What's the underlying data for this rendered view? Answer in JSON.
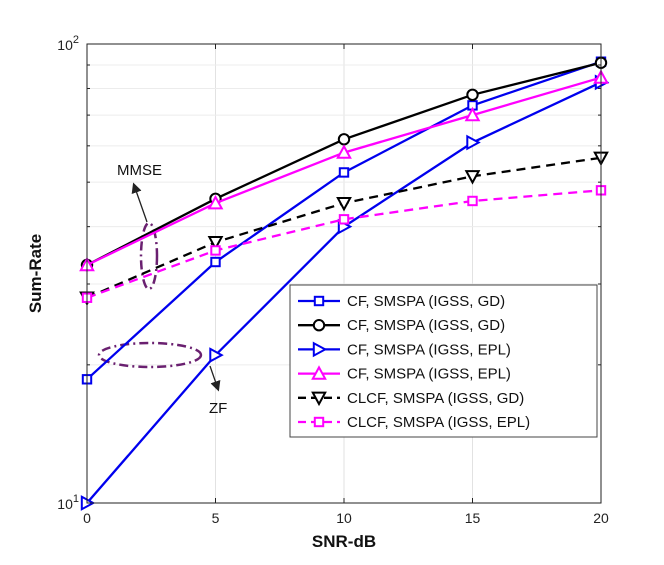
{
  "chart_data": {
    "type": "line",
    "yscale": "log",
    "xlabel": "SNR-dB",
    "ylabel": "Sum-Rate",
    "xlim": [
      0,
      20
    ],
    "ylim": [
      10,
      100
    ],
    "grid": true,
    "x": [
      0,
      5,
      10,
      15,
      20
    ],
    "xticks": [
      "0",
      "5",
      "10",
      "15",
      "20"
    ],
    "yticks": [
      {
        "value": 10,
        "base": "10",
        "exp": "1"
      },
      {
        "value": 100,
        "base": "10",
        "exp": "2"
      }
    ],
    "series": [
      {
        "name": "CF, SMSPA (IGSS, GD)",
        "color": "#0000ee",
        "dash": "solid",
        "marker": "square",
        "values": [
          18.6,
          33.5,
          52.5,
          73.5,
          91.5
        ]
      },
      {
        "name": "CF, SMSPA (IGSS, GD)",
        "color": "#000000",
        "dash": "solid",
        "marker": "circle",
        "values": [
          33.0,
          46.0,
          62.0,
          77.5,
          91.0
        ]
      },
      {
        "name": "CF, SMSPA (IGSS, EPL)",
        "color": "#0000ee",
        "dash": "solid",
        "marker": "triangle-right",
        "values": [
          10.0,
          21.0,
          40.0,
          61.0,
          82.5
        ]
      },
      {
        "name": "CF, SMSPA (IGSS, EPL)",
        "color": "#ff00ff",
        "dash": "solid",
        "marker": "triangle-up",
        "values": [
          33.0,
          45.0,
          58.0,
          70.0,
          84.5
        ]
      },
      {
        "name": "CLCF, SMSPA (IGSS, GD)",
        "color": "#000000",
        "dash": "dashed",
        "marker": "triangle-down",
        "values": [
          28.0,
          37.0,
          45.0,
          51.5,
          56.5
        ]
      },
      {
        "name": "CLCF, SMSPA (IGSS, EPL)",
        "color": "#ff00ff",
        "dash": "dashed",
        "marker": "square",
        "values": [
          28.0,
          35.5,
          41.5,
          45.5,
          48.0
        ]
      }
    ],
    "legend_position": "bottom-right",
    "annotations": [
      {
        "text": "MMSE",
        "ellipse_color": "#6a2070"
      },
      {
        "text": "ZF",
        "ellipse_color": "#6a2070"
      }
    ]
  }
}
